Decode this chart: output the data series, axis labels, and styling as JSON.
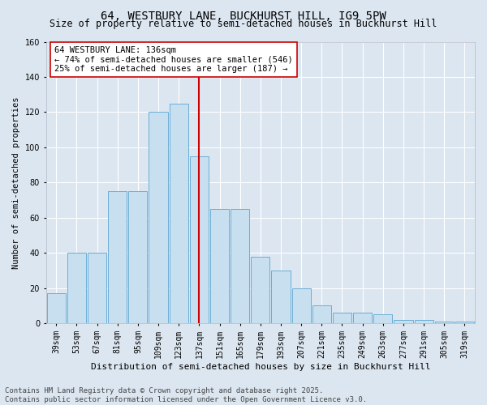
{
  "title1": "64, WESTBURY LANE, BUCKHURST HILL, IG9 5PW",
  "title2": "Size of property relative to semi-detached houses in Buckhurst Hill",
  "xlabel": "Distribution of semi-detached houses by size in Buckhurst Hill",
  "ylabel": "Number of semi-detached properties",
  "categories": [
    "39sqm",
    "53sqm",
    "67sqm",
    "81sqm",
    "95sqm",
    "109sqm",
    "123sqm",
    "137sqm",
    "151sqm",
    "165sqm",
    "179sqm",
    "193sqm",
    "207sqm",
    "221sqm",
    "235sqm",
    "249sqm",
    "263sqm",
    "277sqm",
    "291sqm",
    "305sqm",
    "319sqm"
  ],
  "values": [
    17,
    40,
    40,
    75,
    75,
    120,
    125,
    95,
    65,
    65,
    38,
    30,
    20,
    10,
    6,
    6,
    5,
    2,
    2,
    1,
    1
  ],
  "bar_color": "#c8dff0",
  "bar_edge_color": "#6aaed6",
  "vline_idx": 7,
  "vline_color": "#cc0000",
  "annotation_text": "64 WESTBURY LANE: 136sqm\n← 74% of semi-detached houses are smaller (546)\n25% of semi-detached houses are larger (187) →",
  "annotation_box_facecolor": "#ffffff",
  "annotation_box_edgecolor": "#cc0000",
  "footer_text": "Contains HM Land Registry data © Crown copyright and database right 2025.\nContains public sector information licensed under the Open Government Licence v3.0.",
  "ylim": [
    0,
    160
  ],
  "yticks": [
    0,
    20,
    40,
    60,
    80,
    100,
    120,
    140,
    160
  ],
  "background_color": "#dce6f0",
  "plot_background_color": "#dce6f0",
  "grid_color": "#ffffff",
  "title1_fontsize": 10,
  "title2_fontsize": 8.5,
  "xlabel_fontsize": 8,
  "ylabel_fontsize": 7.5,
  "tick_fontsize": 7,
  "ann_fontsize": 7.5,
  "footer_fontsize": 6.5
}
